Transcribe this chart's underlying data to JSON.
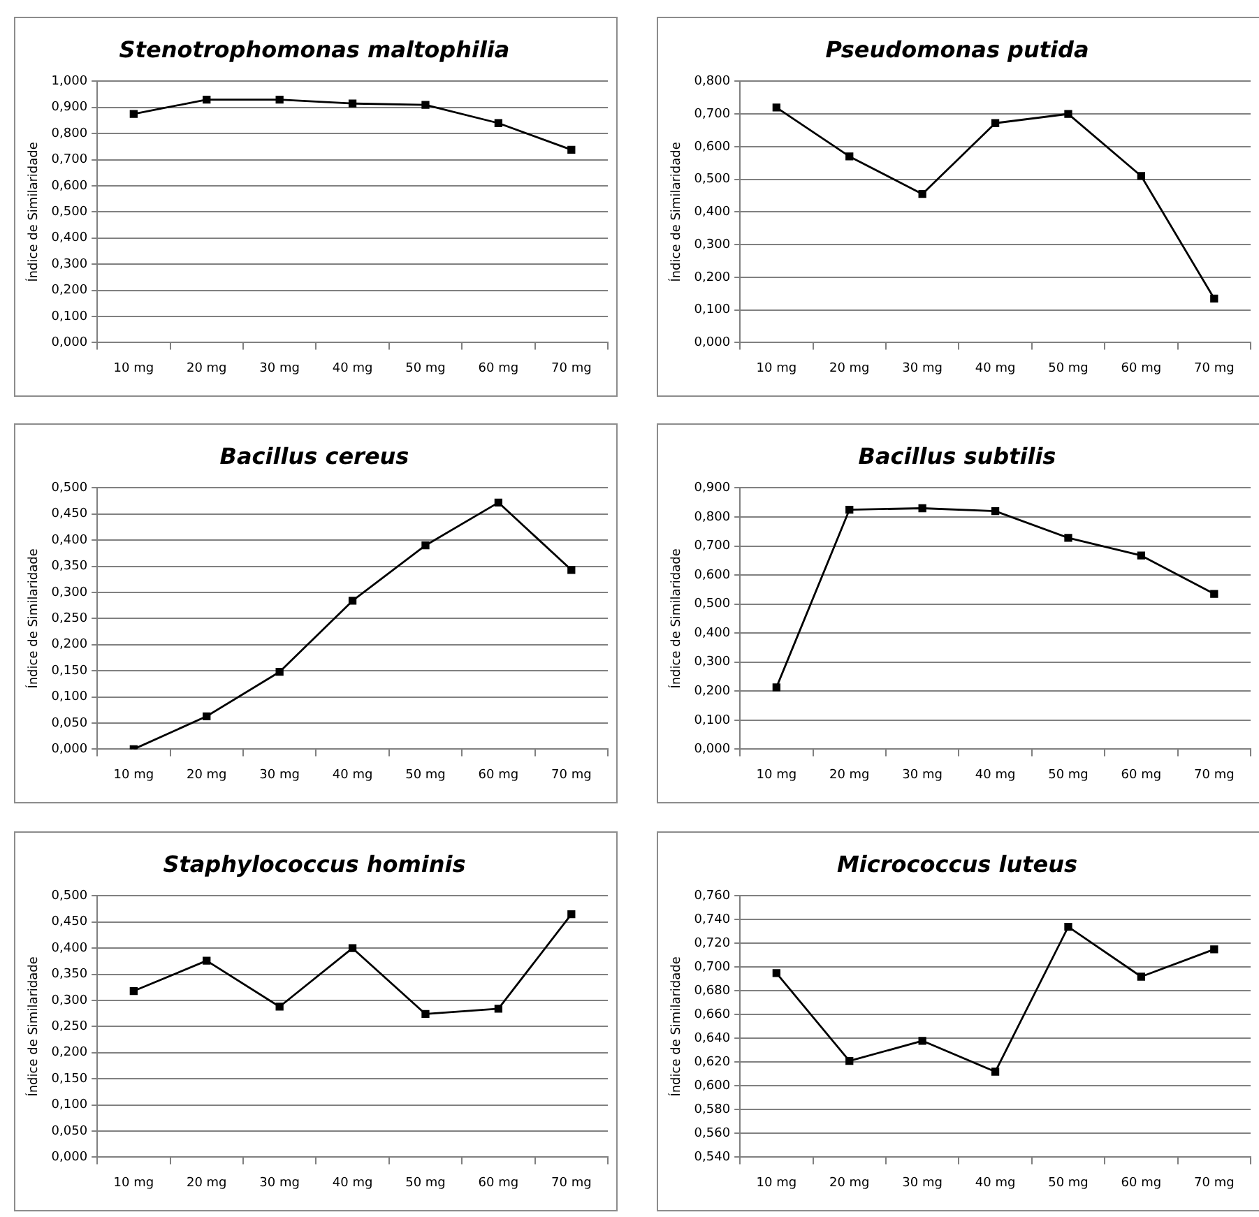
{
  "chart_data": [
    {
      "type": "line",
      "title": "Stenotrophomonas maltophilia",
      "ylabel": "Índice de Similaridade",
      "categories": [
        "10 mg",
        "20 mg",
        "30 mg",
        "40 mg",
        "50 mg",
        "60 mg",
        "70 mg"
      ],
      "values": [
        0.875,
        0.93,
        0.93,
        0.915,
        0.91,
        0.84,
        0.738
      ],
      "color": "#000000",
      "ylim": [
        0,
        1
      ],
      "yticks": [
        {
          "value": 0,
          "label": "0,000"
        },
        {
          "value": 0.1,
          "label": "0,100"
        },
        {
          "value": 0.2,
          "label": "0,200"
        },
        {
          "value": 0.3,
          "label": "0,300"
        },
        {
          "value": 0.4,
          "label": "0,400"
        },
        {
          "value": 0.5,
          "label": "0,500"
        },
        {
          "value": 0.6,
          "label": "0,600"
        },
        {
          "value": 0.7,
          "label": "0,700"
        },
        {
          "value": 0.8,
          "label": "0,800"
        },
        {
          "value": 0.9,
          "label": "0,900"
        },
        {
          "value": 1,
          "label": "1,000"
        }
      ],
      "grid": "y",
      "marker": "square",
      "line_style": "solid",
      "legend": false
    },
    {
      "type": "line",
      "title": "Pseudomonas putida",
      "ylabel": "Índice de Similaridade",
      "categories": [
        "10 mg",
        "20 mg",
        "30 mg",
        "40 mg",
        "50 mg",
        "60 mg",
        "70 mg"
      ],
      "values": [
        0.72,
        0.57,
        0.455,
        0.672,
        0.7,
        0.51,
        0.135
      ],
      "color": "#000000",
      "ylim": [
        0,
        0.8
      ],
      "yticks": [
        {
          "value": 0,
          "label": "0,000"
        },
        {
          "value": 0.1,
          "label": "0,100"
        },
        {
          "value": 0.2,
          "label": "0,200"
        },
        {
          "value": 0.3,
          "label": "0,300"
        },
        {
          "value": 0.4,
          "label": "0,400"
        },
        {
          "value": 0.5,
          "label": "0,500"
        },
        {
          "value": 0.6,
          "label": "0,600"
        },
        {
          "value": 0.7,
          "label": "0,700"
        },
        {
          "value": 0.8,
          "label": "0,800"
        }
      ],
      "grid": "y",
      "marker": "square",
      "line_style": "solid",
      "legend": false
    },
    {
      "type": "line",
      "title": "Bacillus cereus",
      "ylabel": "Índice de Similaridade",
      "categories": [
        "10 mg",
        "20 mg",
        "30 mg",
        "40 mg",
        "50 mg",
        "60 mg",
        "70 mg"
      ],
      "values": [
        0,
        0.063,
        0.148,
        0.284,
        0.39,
        0.472,
        0.343
      ],
      "color": "#000000",
      "ylim": [
        0,
        0.5
      ],
      "yticks": [
        {
          "value": 0,
          "label": "0,000"
        },
        {
          "value": 0.05,
          "label": "0,050"
        },
        {
          "value": 0.1,
          "label": "0,100"
        },
        {
          "value": 0.15,
          "label": "0,150"
        },
        {
          "value": 0.2,
          "label": "0,200"
        },
        {
          "value": 0.25,
          "label": "0,250"
        },
        {
          "value": 0.3,
          "label": "0,300"
        },
        {
          "value": 0.35,
          "label": "0,350"
        },
        {
          "value": 0.4,
          "label": "0,400"
        },
        {
          "value": 0.45,
          "label": "0,450"
        },
        {
          "value": 0.5,
          "label": "0,500"
        }
      ],
      "grid": "y",
      "marker": "square",
      "line_style": "solid",
      "legend": false
    },
    {
      "type": "line",
      "title": "Bacillus subtilis",
      "ylabel": "Índice de Similaridade",
      "categories": [
        "10 mg",
        "20 mg",
        "30 mg",
        "40 mg",
        "50 mg",
        "60 mg",
        "70 mg"
      ],
      "values": [
        0.213,
        0.825,
        0.83,
        0.82,
        0.728,
        0.667,
        0.535
      ],
      "color": "#000000",
      "ylim": [
        0,
        0.9
      ],
      "yticks": [
        {
          "value": 0,
          "label": "0,000"
        },
        {
          "value": 0.1,
          "label": "0,100"
        },
        {
          "value": 0.2,
          "label": "0,200"
        },
        {
          "value": 0.3,
          "label": "0,300"
        },
        {
          "value": 0.4,
          "label": "0,400"
        },
        {
          "value": 0.5,
          "label": "0,500"
        },
        {
          "value": 0.6,
          "label": "0,600"
        },
        {
          "value": 0.7,
          "label": "0,700"
        },
        {
          "value": 0.8,
          "label": "0,800"
        },
        {
          "value": 0.9,
          "label": "0,900"
        }
      ],
      "grid": "y",
      "marker": "square",
      "line_style": "solid",
      "legend": false
    },
    {
      "type": "line",
      "title": "Staphylococcus hominis",
      "ylabel": "Índice de Similaridade",
      "categories": [
        "10 mg",
        "20 mg",
        "30 mg",
        "40 mg",
        "50 mg",
        "60 mg",
        "70 mg"
      ],
      "values": [
        0.318,
        0.376,
        0.288,
        0.4,
        0.274,
        0.284,
        0.465
      ],
      "color": "#000000",
      "ylim": [
        0,
        0.5
      ],
      "yticks": [
        {
          "value": 0,
          "label": "0,000"
        },
        {
          "value": 0.05,
          "label": "0,050"
        },
        {
          "value": 0.1,
          "label": "0,100"
        },
        {
          "value": 0.15,
          "label": "0,150"
        },
        {
          "value": 0.2,
          "label": "0,200"
        },
        {
          "value": 0.25,
          "label": "0,250"
        },
        {
          "value": 0.3,
          "label": "0,300"
        },
        {
          "value": 0.35,
          "label": "0,350"
        },
        {
          "value": 0.4,
          "label": "0,400"
        },
        {
          "value": 0.45,
          "label": "0,450"
        },
        {
          "value": 0.5,
          "label": "0,500"
        }
      ],
      "grid": "y",
      "marker": "square",
      "line_style": "solid",
      "legend": false
    },
    {
      "type": "line",
      "title": "Micrococcus luteus",
      "ylabel": "Índice de Similaridade",
      "categories": [
        "10 mg",
        "20 mg",
        "30 mg",
        "40 mg",
        "50 mg",
        "60 mg",
        "70 mg"
      ],
      "values": [
        0.695,
        0.621,
        0.638,
        0.612,
        0.734,
        0.692,
        0.715
      ],
      "color": "#000000",
      "ylim": [
        0.54,
        0.76
      ],
      "yticks": [
        {
          "value": 0.54,
          "label": "0,540"
        },
        {
          "value": 0.56,
          "label": "0,560"
        },
        {
          "value": 0.58,
          "label": "0,580"
        },
        {
          "value": 0.6,
          "label": "0,600"
        },
        {
          "value": 0.62,
          "label": "0,620"
        },
        {
          "value": 0.64,
          "label": "0,640"
        },
        {
          "value": 0.66,
          "label": "0,660"
        },
        {
          "value": 0.68,
          "label": "0,680"
        },
        {
          "value": 0.7,
          "label": "0,700"
        },
        {
          "value": 0.72,
          "label": "0,720"
        },
        {
          "value": 0.74,
          "label": "0,740"
        },
        {
          "value": 0.76,
          "label": "0,760"
        }
      ],
      "grid": "y",
      "marker": "square",
      "line_style": "solid",
      "legend": false
    }
  ]
}
